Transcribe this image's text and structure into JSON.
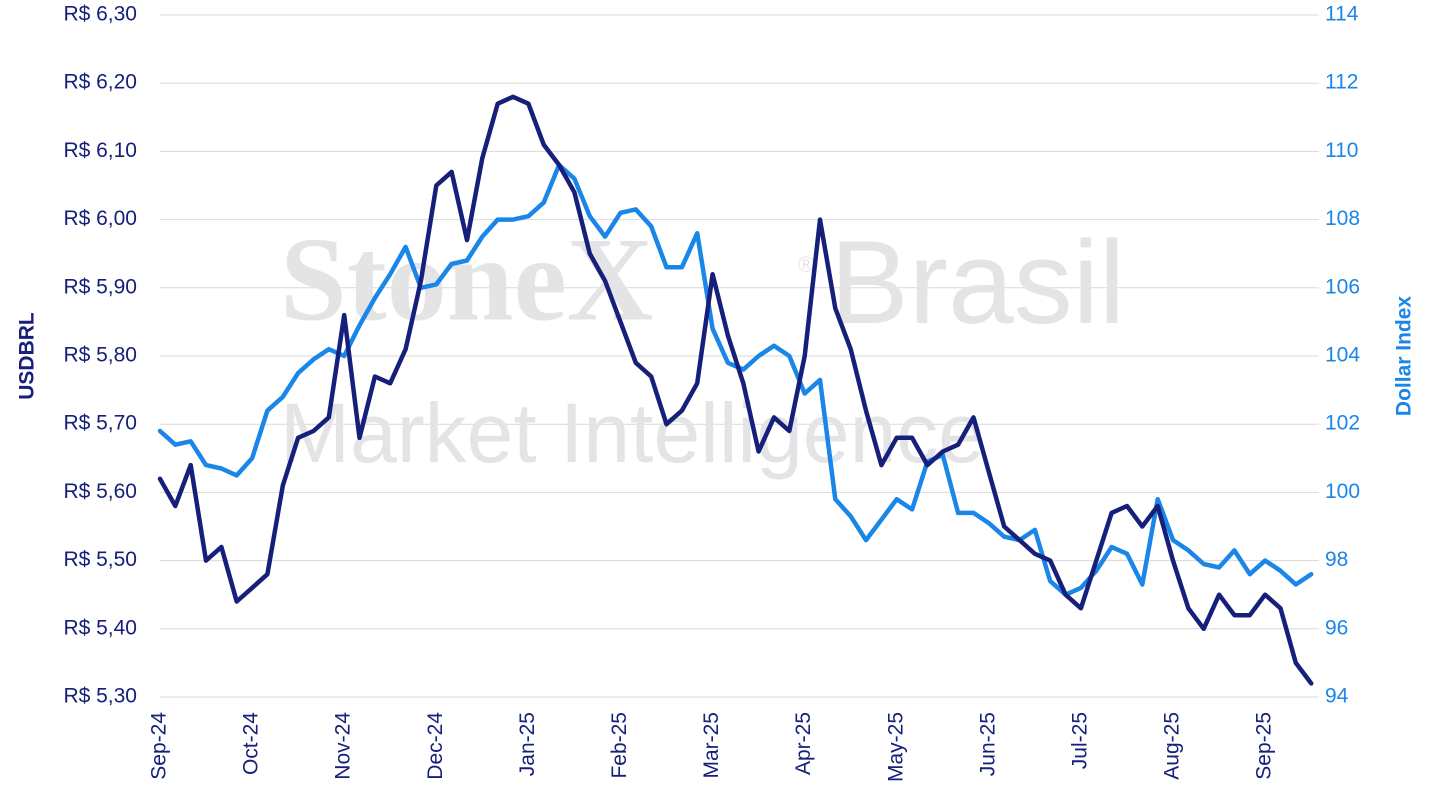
{
  "chart_data": {
    "type": "line",
    "watermark": "StoneX",
    "watermark_mark": "®",
    "watermark_brand": "Brasil",
    "watermark_sub": "Market Intelligence",
    "categories": [
      "Sep-24",
      null,
      null,
      null,
      null,
      null,
      "Oct-24",
      null,
      null,
      null,
      null,
      null,
      "Nov-24",
      null,
      null,
      null,
      null,
      null,
      "Dec-24",
      null,
      null,
      null,
      null,
      null,
      "Jan-25",
      null,
      null,
      null,
      null,
      null,
      "Feb-25",
      null,
      null,
      null,
      null,
      null,
      "Mar-25",
      null,
      null,
      null,
      null,
      null,
      "Apr-25",
      null,
      null,
      null,
      null,
      null,
      "May-25",
      null,
      null,
      null,
      null,
      null,
      "Jun-25",
      null,
      null,
      null,
      null,
      null,
      "Jul-25",
      null,
      null,
      null,
      null,
      null,
      "Aug-25",
      null,
      null,
      null,
      null,
      null,
      "Sep-25",
      null,
      null,
      null
    ],
    "series": [
      {
        "name": "USDBRL",
        "color": "#16207a",
        "axis": "y",
        "values": [
          5.62,
          5.58,
          5.64,
          5.5,
          5.52,
          5.44,
          5.46,
          5.48,
          5.61,
          5.68,
          5.69,
          5.71,
          5.86,
          5.68,
          5.77,
          5.76,
          5.81,
          5.91,
          6.05,
          6.07,
          5.97,
          6.09,
          6.17,
          6.18,
          6.17,
          6.11,
          6.08,
          6.04,
          5.95,
          5.91,
          5.85,
          5.79,
          5.77,
          5.7,
          5.72,
          5.76,
          5.92,
          5.83,
          5.76,
          5.66,
          5.71,
          5.69,
          5.8,
          6.0,
          5.87,
          5.81,
          5.72,
          5.64,
          5.68,
          5.68,
          5.64,
          5.66,
          5.67,
          5.71,
          5.63,
          5.55,
          5.53,
          5.51,
          5.5,
          5.45,
          5.43,
          5.5,
          5.57,
          5.58,
          5.55,
          5.58,
          5.5,
          5.43,
          5.4,
          5.45,
          5.42,
          5.42,
          5.45,
          5.43,
          5.35,
          5.32
        ]
      },
      {
        "name": "Dollar Index",
        "color": "#1a86e8",
        "axis": "y2",
        "values": [
          101.8,
          101.4,
          101.5,
          100.8,
          100.7,
          100.5,
          101.0,
          102.4,
          102.8,
          103.5,
          103.9,
          104.2,
          104.0,
          104.9,
          105.7,
          106.4,
          107.2,
          106.0,
          106.1,
          106.7,
          106.8,
          107.5,
          108.0,
          108.0,
          108.1,
          108.5,
          109.6,
          109.2,
          108.1,
          107.5,
          108.2,
          108.3,
          107.8,
          106.6,
          106.6,
          107.6,
          104.8,
          103.8,
          103.6,
          104.0,
          104.3,
          104.0,
          102.9,
          103.3,
          99.8,
          99.3,
          98.6,
          99.2,
          99.8,
          99.5,
          100.9,
          101.1,
          99.4,
          99.4,
          99.1,
          98.7,
          98.6,
          98.9,
          97.4,
          97.0,
          97.2,
          97.7,
          98.4,
          98.2,
          97.3,
          99.8,
          98.6,
          98.3,
          97.9,
          97.8,
          98.3,
          97.6,
          98.0,
          97.7,
          97.3,
          97.6
        ]
      }
    ],
    "ylim": [
      5.3,
      6.3
    ],
    "yticks": [
      {
        "value": 5.3,
        "label": "R$ 5,30"
      },
      {
        "value": 5.4,
        "label": "R$ 5,40"
      },
      {
        "value": 5.5,
        "label": "R$ 5,50"
      },
      {
        "value": 5.6,
        "label": "R$ 5,60"
      },
      {
        "value": 5.7,
        "label": "R$ 5,70"
      },
      {
        "value": 5.8,
        "label": "R$ 5,80"
      },
      {
        "value": 5.9,
        "label": "R$ 5,90"
      },
      {
        "value": 6.0,
        "label": "R$ 6,00"
      },
      {
        "value": 6.1,
        "label": "R$ 6,10"
      },
      {
        "value": 6.2,
        "label": "R$ 6,20"
      },
      {
        "value": 6.3,
        "label": "R$ 6,30"
      }
    ],
    "y2lim": [
      94,
      114
    ],
    "y2ticks": [
      94,
      96,
      98,
      100,
      102,
      104,
      106,
      108,
      110,
      112,
      114
    ],
    "grid": true
  }
}
